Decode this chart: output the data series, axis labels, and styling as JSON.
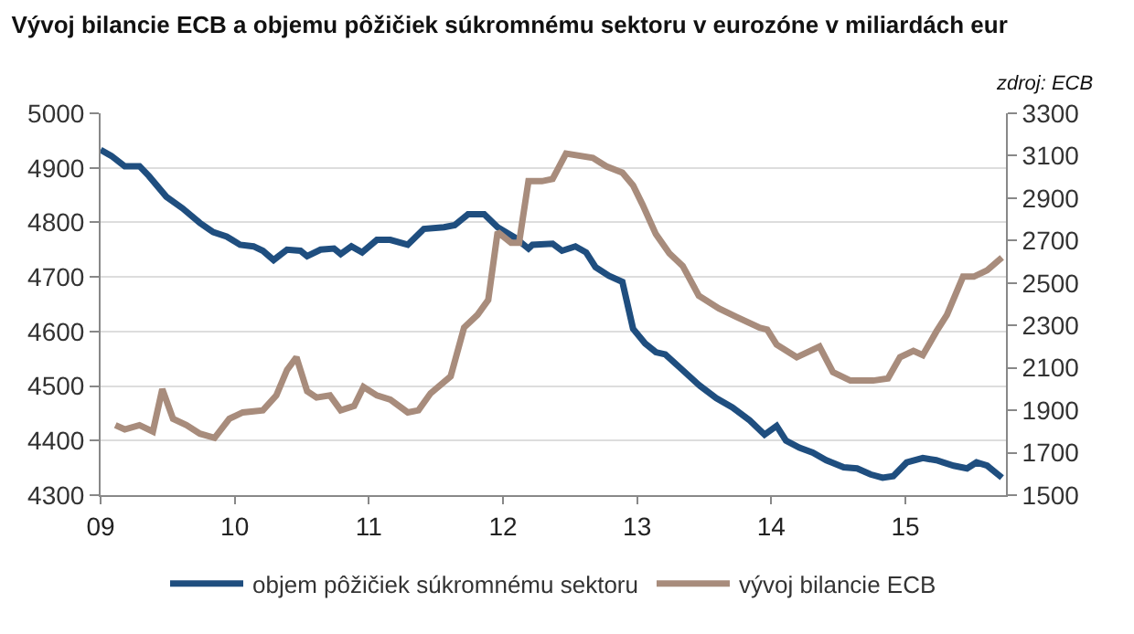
{
  "chart_data": {
    "type": "line",
    "title": "Vývoj bilancie ECB a objemu pôžičiek súkromnému sektoru v eurozóne v miliardách eur",
    "annotations": [
      "zdroj: ECB"
    ],
    "xlim": [
      2009,
      2015.75
    ],
    "xticks": [
      {
        "value": 2009,
        "label": "09"
      },
      {
        "value": 2010,
        "label": "10"
      },
      {
        "value": 2011,
        "label": "11"
      },
      {
        "value": 2012,
        "label": "12"
      },
      {
        "value": 2013,
        "label": "13"
      },
      {
        "value": 2014,
        "label": "14"
      },
      {
        "value": 2015,
        "label": "15"
      }
    ],
    "ylim": [
      4300,
      5000
    ],
    "yticks": [
      4300,
      4400,
      4500,
      4600,
      4700,
      4800,
      4900,
      5000
    ],
    "y2lim": [
      1500,
      3300
    ],
    "y2ticks": [
      1500,
      1700,
      1900,
      2100,
      2300,
      2500,
      2700,
      2900,
      3100,
      3300
    ],
    "grid": "y",
    "legend": "bottom",
    "marker": "none",
    "line_style": "solid",
    "series": [
      {
        "name": "objem pôžičiek súkromnému sektoru",
        "color": "#1f4e7f",
        "x": [
          2009.0,
          2009.08,
          2009.18,
          2009.29,
          2009.36,
          2009.49,
          2009.61,
          2009.74,
          2009.84,
          2009.94,
          2010.04,
          2010.14,
          2010.21,
          2010.29,
          2010.39,
          2010.49,
          2010.54,
          2010.64,
          2010.74,
          2010.79,
          2010.87,
          2010.95,
          2011.06,
          2011.16,
          2011.29,
          2011.41,
          2011.56,
          2011.64,
          2011.74,
          2011.86,
          2011.96,
          2012.09,
          2012.19,
          2012.22,
          2012.37,
          2012.44,
          2012.54,
          2012.62,
          2012.69,
          2012.79,
          2012.89,
          2012.97,
          2013.06,
          2013.14,
          2013.21,
          2013.34,
          2013.46,
          2013.59,
          2013.71,
          2013.84,
          2013.95,
          2014.04,
          2014.11,
          2014.21,
          2014.31,
          2014.41,
          2014.54,
          2014.64,
          2014.74,
          2014.83,
          2014.91,
          2015.01,
          2015.13,
          2015.23,
          2015.36,
          2015.46,
          2015.53,
          2015.61,
          2015.72
        ],
        "values": [
          4933,
          4922,
          4903,
          4903,
          4885,
          4847,
          4826,
          4799,
          4782,
          4774,
          4759,
          4756,
          4748,
          4731,
          4750,
          4748,
          4738,
          4750,
          4752,
          4742,
          4756,
          4745,
          4768,
          4768,
          4759,
          4788,
          4791,
          4795,
          4815,
          4815,
          4791,
          4772,
          4752,
          4759,
          4761,
          4748,
          4756,
          4745,
          4718,
          4702,
          4691,
          4605,
          4578,
          4562,
          4558,
          4529,
          4502,
          4478,
          4461,
          4437,
          4411,
          4427,
          4400,
          4387,
          4378,
          4364,
          4351,
          4349,
          4338,
          4332,
          4335,
          4360,
          4368,
          4364,
          4354,
          4349,
          4360,
          4354,
          4332
        ]
      },
      {
        "name": "vývoj bilancie ECB",
        "color": "#a88c7c",
        "axis": "y2",
        "x": [
          2009.11,
          2009.18,
          2009.29,
          2009.39,
          2009.46,
          2009.54,
          2009.64,
          2009.74,
          2009.85,
          2009.96,
          2010.06,
          2010.21,
          2010.31,
          2010.39,
          2010.46,
          2010.54,
          2010.61,
          2010.71,
          2010.79,
          2010.89,
          2010.96,
          2011.06,
          2011.16,
          2011.29,
          2011.37,
          2011.46,
          2011.61,
          2011.71,
          2011.81,
          2011.89,
          2011.96,
          2012.06,
          2012.12,
          2012.19,
          2012.29,
          2012.37,
          2012.47,
          2012.67,
          2012.77,
          2012.89,
          2012.97,
          2013.04,
          2013.14,
          2013.24,
          2013.34,
          2013.46,
          2013.61,
          2013.74,
          2013.91,
          2013.97,
          2014.04,
          2014.19,
          2014.36,
          2014.46,
          2014.59,
          2014.76,
          2014.87,
          2014.96,
          2015.06,
          2015.13,
          2015.23,
          2015.31,
          2015.43,
          2015.51,
          2015.61,
          2015.72
        ],
        "values": [
          1830,
          1810,
          1830,
          1800,
          2000,
          1860,
          1830,
          1790,
          1770,
          1860,
          1890,
          1900,
          1970,
          2090,
          2150,
          1990,
          1960,
          1970,
          1900,
          1920,
          2010,
          1970,
          1950,
          1890,
          1900,
          1980,
          2060,
          2290,
          2350,
          2420,
          2740,
          2690,
          2690,
          2980,
          2980,
          2990,
          3110,
          3090,
          3050,
          3020,
          2960,
          2870,
          2730,
          2640,
          2580,
          2440,
          2380,
          2340,
          2290,
          2280,
          2210,
          2150,
          2200,
          2080,
          2040,
          2040,
          2050,
          2150,
          2180,
          2160,
          2270,
          2350,
          2530,
          2530,
          2560,
          2620
        ]
      }
    ]
  }
}
